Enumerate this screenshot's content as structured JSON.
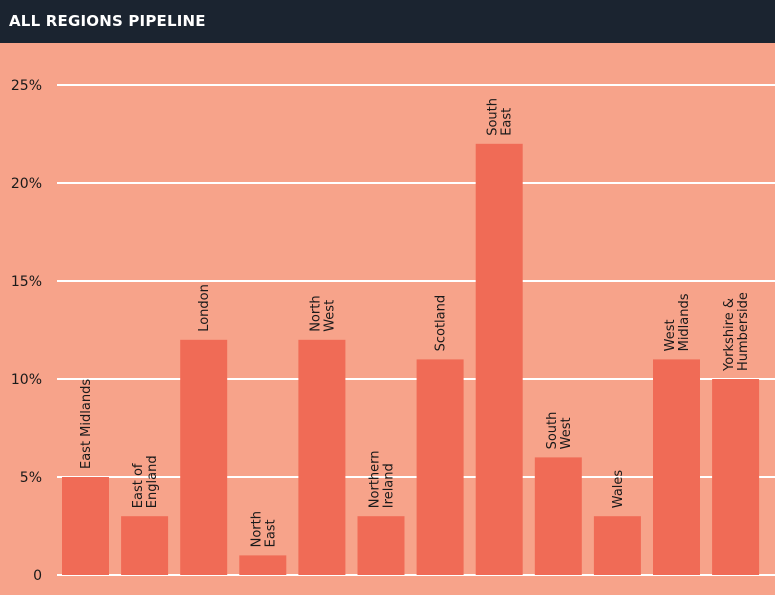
{
  "header": {
    "title": "ALL REGIONS PIPELINE"
  },
  "colors": {
    "background": "#f7a38a",
    "header": "#1b2430",
    "bar": "#f06b56",
    "grid": "#ffffff",
    "text": "#1a1a1a"
  },
  "chart_data": {
    "type": "bar",
    "title": "ALL REGIONS PIPELINE",
    "xlabel": "",
    "ylabel": "",
    "ylim": [
      0,
      25
    ],
    "grid": true,
    "yticks": [
      {
        "value": 0,
        "label": "0"
      },
      {
        "value": 5,
        "label": "5%"
      },
      {
        "value": 10,
        "label": "10%"
      },
      {
        "value": 15,
        "label": "15%"
      },
      {
        "value": 20,
        "label": "20%"
      },
      {
        "value": 25,
        "label": "25%"
      }
    ],
    "categories": [
      {
        "label": "East Midlands",
        "lines": [
          "East Midlands"
        ],
        "value": 5
      },
      {
        "label": "East of England",
        "lines": [
          "East of",
          "England"
        ],
        "value": 3
      },
      {
        "label": "London",
        "lines": [
          "London"
        ],
        "value": 12
      },
      {
        "label": "North East",
        "lines": [
          "North",
          "East"
        ],
        "value": 1
      },
      {
        "label": "North West",
        "lines": [
          "North",
          "West"
        ],
        "value": 12
      },
      {
        "label": "Northern Ireland",
        "lines": [
          "Northern",
          "Ireland"
        ],
        "value": 3
      },
      {
        "label": "Scotland",
        "lines": [
          "Scotland"
        ],
        "value": 11
      },
      {
        "label": "South East",
        "lines": [
          "South",
          "East"
        ],
        "value": 22
      },
      {
        "label": "South West",
        "lines": [
          "South",
          "West"
        ],
        "value": 6
      },
      {
        "label": "Wales",
        "lines": [
          "Wales"
        ],
        "value": 3
      },
      {
        "label": "West Midlands",
        "lines": [
          "West",
          "Midlands"
        ],
        "value": 11
      },
      {
        "label": "Yorkshire & Humberside",
        "lines": [
          "Yorkshire &",
          "Humberside"
        ],
        "value": 10
      }
    ]
  }
}
